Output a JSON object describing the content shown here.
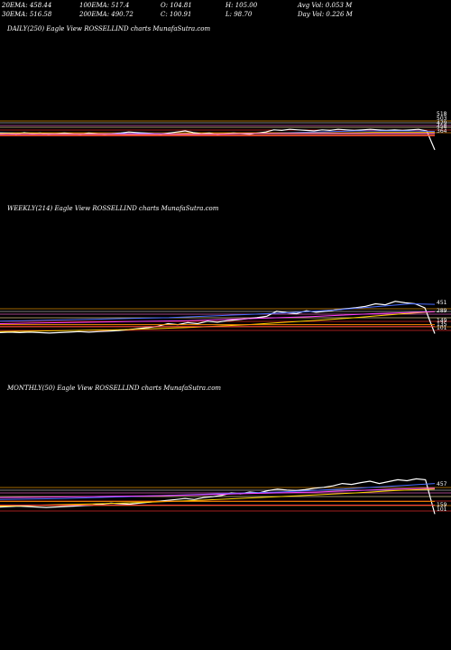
{
  "header": {
    "row1": [
      "20EMA: 458.44",
      "100EMA: 517.4",
      "O: 104.81",
      "H: 105.00",
      "Avg Vol: 0.053  M"
    ],
    "row2": [
      "30EMA: 516.58",
      "200EMA: 490.72",
      "C: 100.91",
      "L: 98.70",
      "Day Vol: 0.226  M"
    ]
  },
  "chart_data": [
    {
      "type": "line",
      "title": "DAILY(250) Eagle   View  ROSSELLIND charts MunafaSutra.com",
      "tick_labels": [
        "518",
        "503",
        "479",
        "458",
        "364"
      ],
      "series": [
        {
          "color": "#ffffff",
          "values": [
            45,
            46,
            44,
            47,
            45,
            46,
            44,
            45,
            46,
            45,
            44,
            46,
            45,
            44,
            45,
            46,
            48,
            47,
            46,
            45,
            44,
            46,
            48,
            50,
            47,
            45,
            46,
            44,
            45,
            46,
            45,
            44,
            46,
            48,
            52,
            51,
            53,
            52,
            51,
            50,
            52,
            51,
            53,
            52,
            51,
            52,
            53,
            52,
            51,
            52,
            51,
            52,
            53,
            50,
            15
          ]
        },
        {
          "color": "#4a6cff",
          "values": [
            47,
            46,
            46,
            45,
            45,
            45,
            45,
            45,
            45,
            44,
            44,
            45,
            45,
            45,
            46,
            47,
            48,
            49,
            50,
            50,
            50,
            50,
            49
          ]
        },
        {
          "color": "#ffd400",
          "values": [
            46,
            46,
            45,
            45,
            44,
            44,
            45,
            45,
            46,
            46,
            46,
            46,
            47,
            47,
            47
          ]
        },
        {
          "color": "#ff40ff",
          "values": [
            44,
            44,
            44,
            44,
            44,
            44,
            44,
            44,
            45,
            45,
            45,
            45,
            45,
            45,
            45
          ]
        },
        {
          "color": "#ff8c00",
          "values": [
            42,
            42,
            42,
            42,
            42,
            42,
            42,
            42,
            42,
            42
          ]
        },
        {
          "color": "#ff4040",
          "values": [
            41,
            41,
            41,
            41,
            41,
            41,
            41,
            41,
            41,
            41
          ]
        }
      ]
    },
    {
      "type": "line",
      "title": "WEEKLY(214) Eagle   View  ROSSELLIND charts MunafaSutra.com",
      "tick_labels": [
        "451",
        "289",
        "149",
        "135",
        "101"
      ],
      "series": [
        {
          "color": "#ffffff",
          "values": [
            12,
            13,
            12,
            13,
            12,
            11,
            12,
            13,
            14,
            13,
            14,
            15,
            16,
            18,
            20,
            22,
            25,
            30,
            28,
            32,
            30,
            35,
            33,
            36,
            38,
            40,
            42,
            45,
            55,
            52,
            50,
            56,
            53,
            55,
            58,
            60,
            62,
            65,
            70,
            68,
            75,
            72,
            70,
            62,
            10
          ]
        },
        {
          "color": "#4a6cff",
          "values": [
            35,
            36,
            37,
            38,
            39,
            40,
            41,
            42,
            44,
            46,
            48,
            50,
            52,
            55,
            58,
            62,
            66,
            70,
            69
          ]
        },
        {
          "color": "#ffd400",
          "values": [
            14,
            15,
            16,
            17,
            18,
            20,
            22,
            25,
            28,
            32,
            36,
            40,
            45,
            50,
            54
          ]
        },
        {
          "color": "#ff40ff",
          "values": [
            30,
            31,
            32,
            33,
            34,
            35,
            36,
            38,
            40,
            42,
            44,
            47,
            50,
            52,
            54
          ]
        },
        {
          "color": "#ff8c00",
          "values": [
            28,
            28,
            28,
            28,
            28,
            28,
            28,
            28,
            28,
            28
          ]
        },
        {
          "color": "#ff4040",
          "values": [
            24,
            24,
            24,
            24,
            24,
            24,
            24,
            24,
            24,
            24
          ]
        }
      ]
    },
    {
      "type": "line",
      "title": "MONTHLY(50) Eagle   View  ROSSELLIND charts MunafaSutra.com",
      "tick_labels": [
        "457",
        "159",
        "101"
      ],
      "series": [
        {
          "color": "#ffffff",
          "values": [
            20,
            21,
            22,
            21,
            20,
            19,
            20,
            21,
            22,
            23,
            24,
            26,
            28,
            27,
            26,
            28,
            30,
            32,
            34,
            36,
            38,
            36,
            40,
            42,
            45,
            50,
            48,
            52,
            50,
            55,
            58,
            56,
            55,
            57,
            60,
            62,
            65,
            70,
            68,
            72,
            75,
            70,
            74,
            78,
            76,
            80,
            78,
            5
          ]
        },
        {
          "color": "#4a6cff",
          "values": [
            36,
            37,
            38,
            40,
            42,
            44,
            46,
            48,
            50,
            52,
            55,
            58,
            62,
            66,
            70
          ]
        },
        {
          "color": "#ffd400",
          "values": [
            22,
            24,
            26,
            28,
            31,
            34,
            38,
            42,
            46,
            50,
            55,
            58
          ]
        },
        {
          "color": "#ff40ff",
          "values": [
            40,
            41,
            42,
            43,
            44,
            46,
            48,
            50,
            52,
            55,
            58,
            60
          ]
        },
        {
          "color": "#ff8c00",
          "values": [
            32,
            32,
            32,
            32,
            32,
            32,
            32,
            32
          ]
        },
        {
          "color": "#ff4040",
          "values": [
            24,
            24,
            24,
            24,
            24,
            24,
            24,
            24
          ]
        }
      ]
    }
  ]
}
